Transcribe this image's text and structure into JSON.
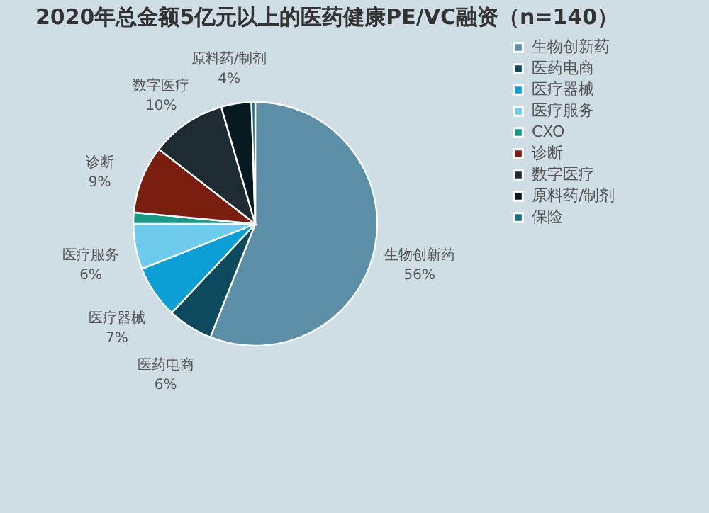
{
  "chart_data": {
    "type": "pie",
    "title": "2020年总金额5亿元以上的医药健康PE/VC融资（n=140）",
    "categories": [
      "生物创新药",
      "医药电商",
      "医疗器械",
      "医疗服务",
      "CXO",
      "诊断",
      "数字医疗",
      "原料药/制剂",
      "保险"
    ],
    "values": [
      56,
      6,
      7,
      6,
      1.5,
      9,
      10,
      4,
      0.5
    ],
    "colors": [
      "#5b8fa8",
      "#0d4a5e",
      "#0b9fd6",
      "#6fcbeb",
      "#1a9a86",
      "#7a1f10",
      "#1e2b32",
      "#061a20",
      "#1a6e85"
    ],
    "value_labels": [
      "56%",
      "6%",
      "7%",
      "6%",
      null,
      "9%",
      "10%",
      "4%",
      null
    ],
    "legend": "right"
  }
}
